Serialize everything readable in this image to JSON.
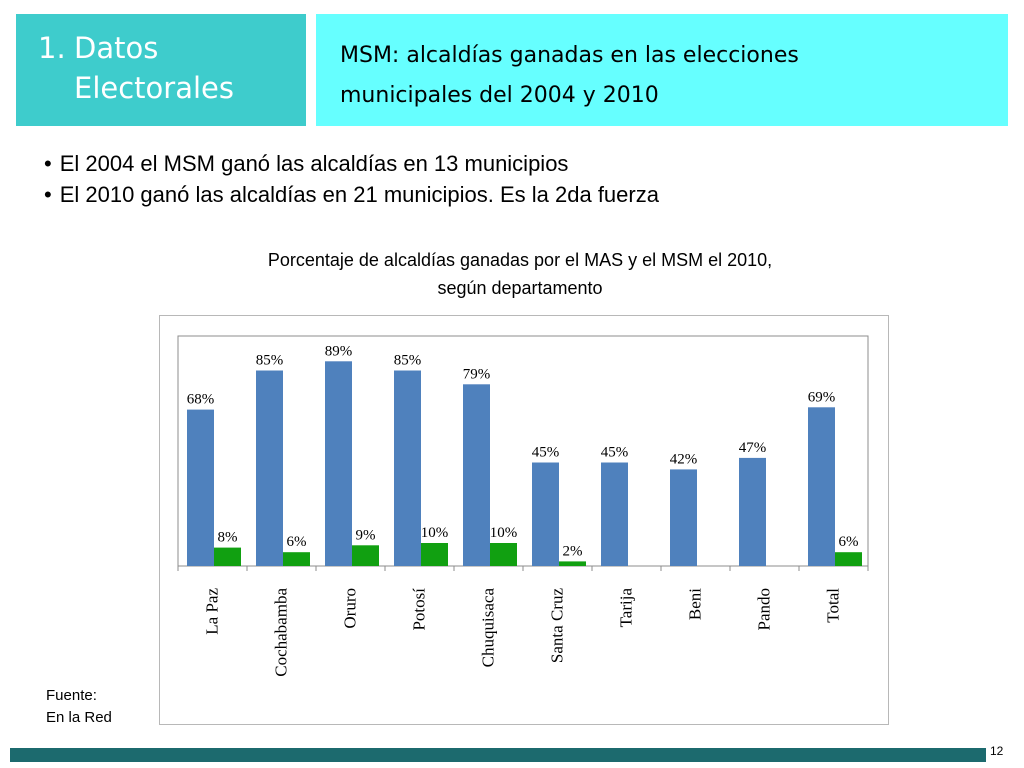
{
  "header": {
    "section_number": "1.",
    "section_line1": "Datos",
    "section_line2": "Electorales",
    "title_line1": "MSM: alcaldías ganadas en las elecciones",
    "title_line2": "municipales del 2004 y 2010"
  },
  "bullets": [
    "El 2004 el MSM ganó las alcaldías en 13 municipios",
    "El 2010 ganó las alcaldías en 21 municipios. Es la 2da fuerza"
  ],
  "chart_title_line1": "Porcentaje de alcaldías ganadas por el MAS y el MSM el 2010,",
  "chart_title_line2": "según departamento",
  "source_line1": "Fuente:",
  "source_line2": "En la Red",
  "page_number": "12",
  "colors": {
    "section_bg": "#3ecccc",
    "title_bg": "#66ffff",
    "series_mas": "#4f81bd",
    "series_msm": "#11a011",
    "bottom_bar": "#1c6a6e"
  },
  "chart_data": {
    "type": "bar",
    "categories": [
      "La Paz",
      "Cochabamba",
      "Oruro",
      "Potosí",
      "Chuquisaca",
      "Santa Cruz",
      "Tarija",
      "Beni",
      "Pando",
      "Total"
    ],
    "series": [
      {
        "values": [
          68,
          85,
          89,
          85,
          79,
          45,
          45,
          42,
          47,
          69
        ],
        "labels": [
          "68%",
          "85%",
          "89%",
          "85%",
          "79%",
          "45%",
          "45%",
          "42%",
          "47%",
          "69%"
        ],
        "color": "#4f81bd"
      },
      {
        "values": [
          8,
          6,
          9,
          10,
          10,
          2,
          null,
          null,
          null,
          6
        ],
        "labels": [
          "8%",
          "6%",
          "9%",
          "10%",
          "10%",
          "2%",
          "",
          "",
          "",
          "6%"
        ],
        "color": "#11a011"
      }
    ],
    "ylim": [
      0,
      100
    ],
    "legend": "none",
    "grid": false,
    "xlabel": "",
    "ylabel": ""
  }
}
